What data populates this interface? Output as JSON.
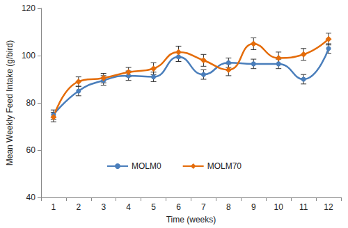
{
  "chart_data": {
    "type": "line",
    "x_label": "Time (weeks)",
    "y_label": "Mean Weekly Feed Intake (g/bird)",
    "categories": [
      "1",
      "2",
      "3",
      "4",
      "5",
      "6",
      "7",
      "8",
      "9",
      "10",
      "11",
      "12"
    ],
    "series": [
      {
        "name": "MOLM0",
        "color": "#4a7ebb",
        "marker": "circle",
        "values": [
          75,
          85,
          89.5,
          91.5,
          91,
          99.5,
          92,
          97,
          96.5,
          96.5,
          90,
          103
        ],
        "errors": [
          2,
          2,
          2,
          2,
          2,
          2,
          2,
          2,
          2,
          2,
          2,
          2
        ]
      },
      {
        "name": "MOLM70",
        "color": "#e46c0a",
        "marker": "diamond",
        "values": [
          74,
          89,
          90.5,
          93,
          94.5,
          101.5,
          98,
          94,
          105,
          99,
          100.5,
          107
        ],
        "errors": [
          2,
          2,
          2,
          2,
          2.5,
          2.5,
          2.5,
          2.5,
          2.5,
          2.5,
          2.5,
          2.5
        ]
      }
    ],
    "ylim": [
      40,
      120
    ],
    "yticks": [
      40,
      60,
      80,
      100,
      120
    ],
    "grid": false,
    "legend": "lower center"
  }
}
